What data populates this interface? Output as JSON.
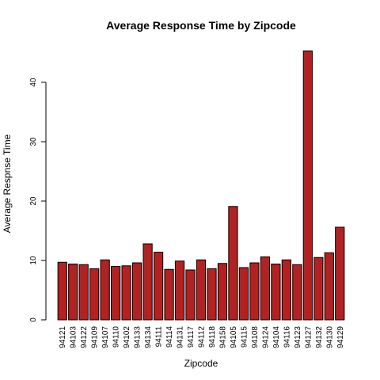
{
  "chart_data": {
    "type": "bar",
    "title": "Average Response Time by Zipcode",
    "xlabel": "Zipcode",
    "ylabel": "Average Respnse Time",
    "ylim": [
      0,
      46
    ],
    "yticks": [
      0,
      10,
      20,
      30,
      40
    ],
    "bar_color": "#b22222",
    "grid": false,
    "legend": "none",
    "categories": [
      "94121",
      "94103",
      "94122",
      "94109",
      "94107",
      "94110",
      "94102",
      "94133",
      "94134",
      "94111",
      "94114",
      "94131",
      "94117",
      "94112",
      "94118",
      "94158",
      "94105",
      "94115",
      "94108",
      "94124",
      "94104",
      "94116",
      "94123",
      "94127",
      "94132",
      "94130",
      "94129"
    ],
    "values": [
      9.7,
      9.4,
      9.3,
      8.6,
      10.1,
      9.0,
      9.1,
      9.6,
      12.8,
      11.4,
      8.5,
      9.9,
      8.4,
      10.1,
      8.6,
      9.5,
      19.1,
      8.8,
      9.6,
      10.6,
      9.4,
      10.1,
      9.3,
      45.3,
      10.5,
      11.3,
      15.6
    ]
  }
}
